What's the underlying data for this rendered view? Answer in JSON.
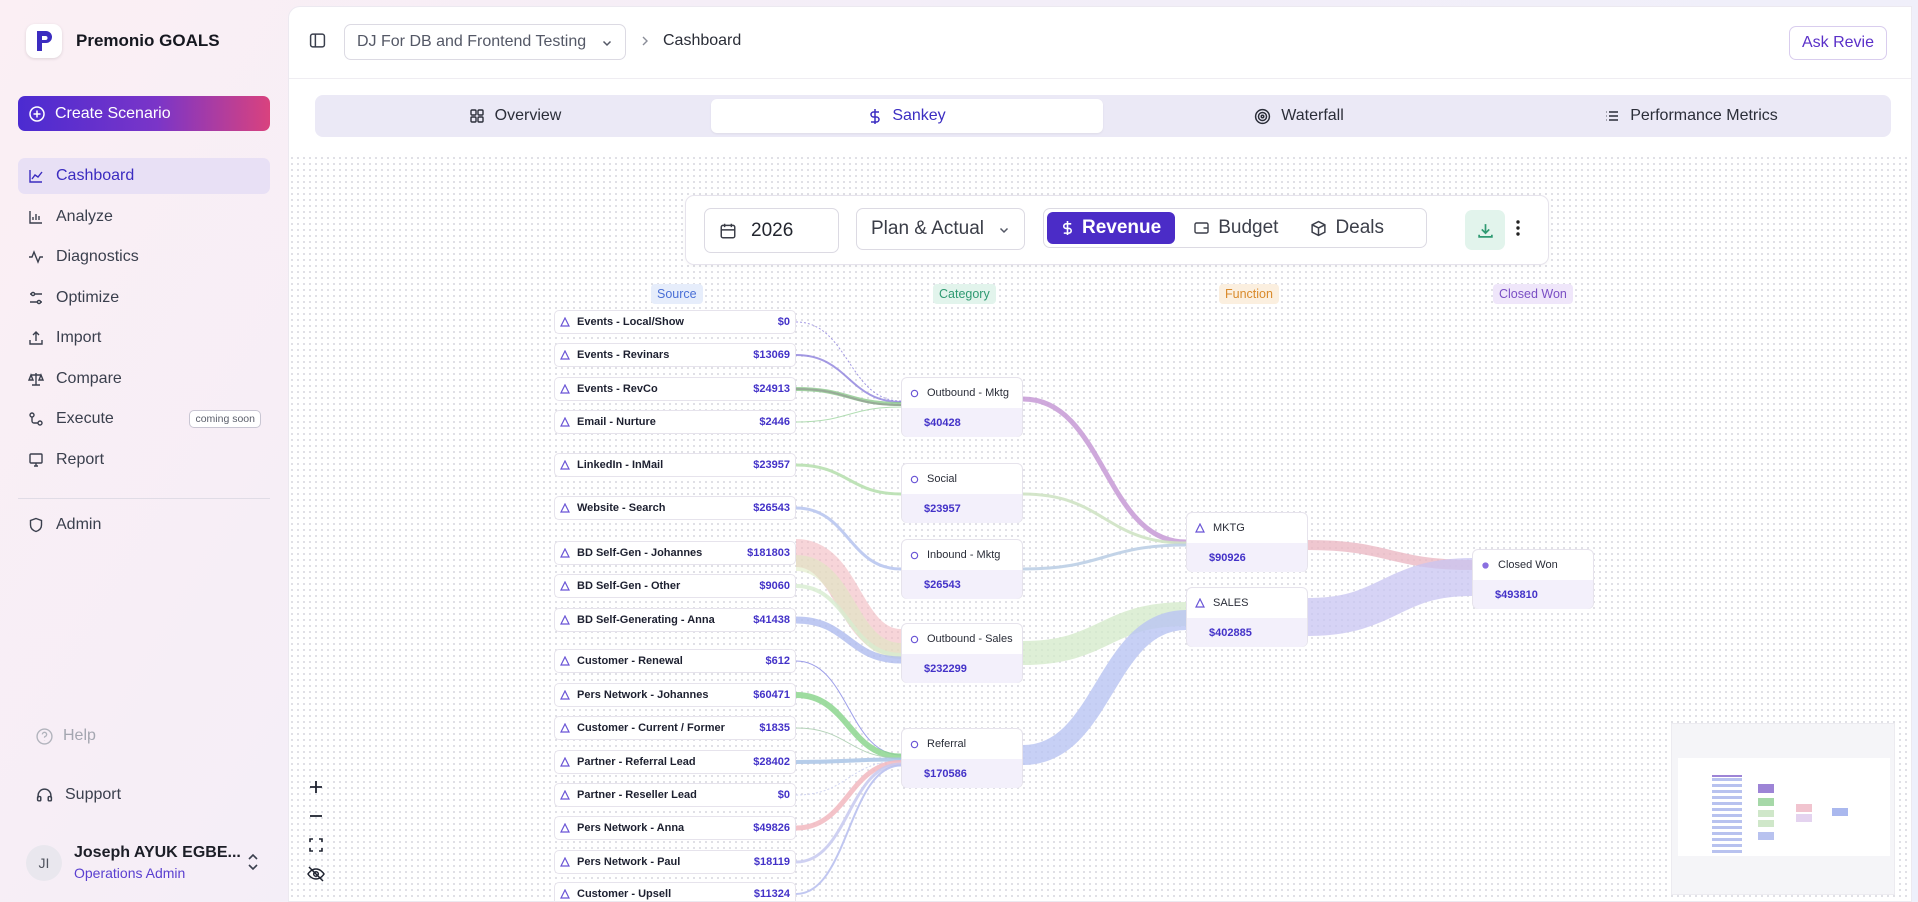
{
  "app": {
    "name": "Premonio GOALS"
  },
  "sidebar": {
    "create_label": "Create Scenario",
    "items": [
      {
        "label": "Cashboard",
        "icon": "chart-line-icon",
        "active": true
      },
      {
        "label": "Analyze",
        "icon": "bar-chart-icon"
      },
      {
        "label": "Diagnostics",
        "icon": "activity-icon"
      },
      {
        "label": "Optimize",
        "icon": "sliders-icon"
      },
      {
        "label": "Import",
        "icon": "upload-icon"
      },
      {
        "label": "Compare",
        "icon": "scale-icon"
      },
      {
        "label": "Execute",
        "icon": "workflow-icon",
        "badge": "coming soon"
      },
      {
        "label": "Report",
        "icon": "monitor-icon"
      }
    ],
    "admin_label": "Admin",
    "help_label": "Help",
    "support_label": "Support",
    "user": {
      "initials": "JI",
      "name": "Joseph AYUK EGBE...",
      "role": "Operations Admin"
    }
  },
  "header": {
    "project": "DJ For DB and Frontend Testing",
    "breadcrumb": "Cashboard",
    "ask_label": "Ask Revie"
  },
  "tabs": [
    {
      "label": "Overview",
      "icon": "grid-icon"
    },
    {
      "label": "Sankey",
      "icon": "dollar-icon",
      "active": true
    },
    {
      "label": "Waterfall",
      "icon": "target-icon"
    },
    {
      "label": "Performance Metrics",
      "icon": "list-icon"
    }
  ],
  "controls": {
    "year": "2026",
    "mode": "Plan & Actual",
    "segments": [
      {
        "label": "Revenue",
        "icon": "dollar-icon",
        "active": true
      },
      {
        "label": "Budget",
        "icon": "wallet-icon"
      },
      {
        "label": "Deals",
        "icon": "box-icon"
      }
    ]
  },
  "columns": [
    {
      "label": "Source",
      "color": "#4a6fd6",
      "bg": "#e6edfb"
    },
    {
      "label": "Category",
      "color": "#2f9a72",
      "bg": "#e2f4ec"
    },
    {
      "label": "Function",
      "color": "#d98a2b",
      "bg": "#fbefdf"
    },
    {
      "label": "Closed Won",
      "color": "#7a4fc4",
      "bg": "#efe6fa"
    }
  ],
  "sources": [
    {
      "name": "Events - Local/Show",
      "value": "$0"
    },
    {
      "name": "Events - Revinars",
      "value": "$13069"
    },
    {
      "name": "Events - RevCo",
      "value": "$24913"
    },
    {
      "name": "Email - Nurture",
      "value": "$2446"
    },
    {
      "name": "LinkedIn - InMail",
      "value": "$23957"
    },
    {
      "name": "Website - Search",
      "value": "$26543"
    },
    {
      "name": "BD Self-Gen - Johannes",
      "value": "$181803"
    },
    {
      "name": "BD Self-Gen - Other",
      "value": "$9060"
    },
    {
      "name": "BD Self-Generating - Anna",
      "value": "$41438"
    },
    {
      "name": "Customer - Renewal",
      "value": "$612"
    },
    {
      "name": "Pers Network - Johannes",
      "value": "$60471"
    },
    {
      "name": "Customer - Current / Former",
      "value": "$1835"
    },
    {
      "name": "Partner - Referral Lead",
      "value": "$28402"
    },
    {
      "name": "Partner - Reseller Lead",
      "value": "$0"
    },
    {
      "name": "Pers Network - Anna",
      "value": "$49826"
    },
    {
      "name": "Pers Network - Paul",
      "value": "$18119"
    },
    {
      "name": "Customer - Upsell",
      "value": "$11324"
    }
  ],
  "categories": [
    {
      "name": "Outbound - Mktg",
      "value": "$40428"
    },
    {
      "name": "Social",
      "value": "$23957"
    },
    {
      "name": "Inbound - Mktg",
      "value": "$26543"
    },
    {
      "name": "Outbound - Sales",
      "value": "$232299"
    },
    {
      "name": "Referral",
      "value": "$170586"
    }
  ],
  "functions": [
    {
      "name": "MKTG",
      "value": "$90926"
    },
    {
      "name": "SALES",
      "value": "$402885"
    }
  ],
  "closed_won": [
    {
      "name": "Closed Won",
      "value": "$493810"
    }
  ]
}
